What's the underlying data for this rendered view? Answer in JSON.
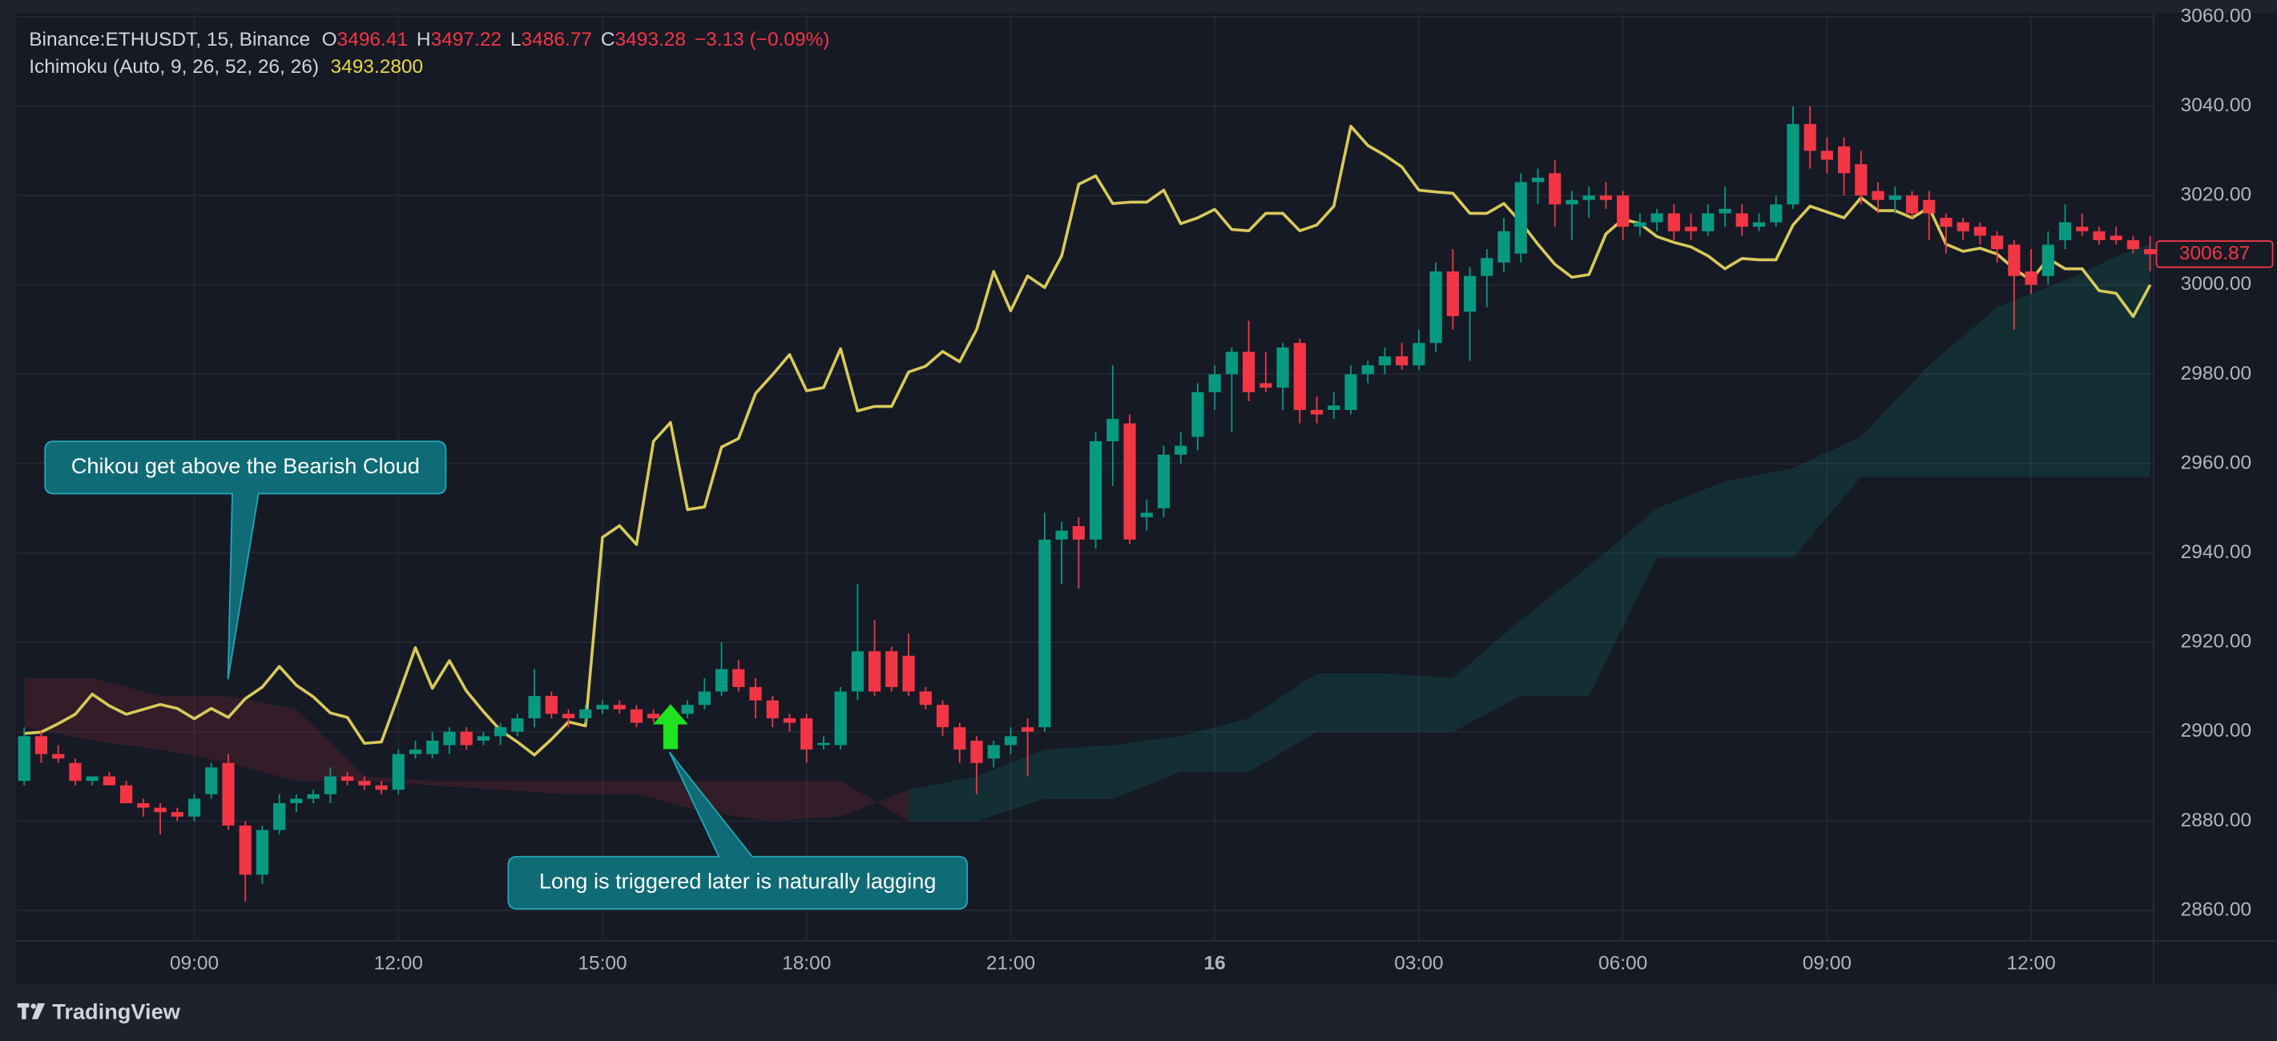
{
  "header": {
    "symbol": "Binance:ETHUSDT, 15, Binance",
    "open_label": "O",
    "open": 3496.41,
    "high_label": "H",
    "high": 3497.22,
    "low_label": "L",
    "low": 3486.77,
    "close_label": "C",
    "close": 3493.28,
    "change": "−3.13 (−0.09%)",
    "indicator_value": "3493.2800",
    "brand": "TradingView"
  },
  "chart_data": {
    "type": "candlestick",
    "up_color": "#089981",
    "down_color": "#f23645",
    "xlim": [
      6.4,
      37.8
    ],
    "ylim": [
      2853.2,
      3060.5
    ],
    "xticks": [
      {
        "value": 9,
        "label": "09:00"
      },
      {
        "value": 12,
        "label": "12:00"
      },
      {
        "value": 15,
        "label": "15:00"
      },
      {
        "value": 18,
        "label": "18:00"
      },
      {
        "value": 21,
        "label": "21:00"
      },
      {
        "value": 24,
        "label": "16"
      },
      {
        "value": 27,
        "label": "03:00"
      },
      {
        "value": 30,
        "label": "06:00"
      },
      {
        "value": 33,
        "label": "09:00"
      },
      {
        "value": 36,
        "label": "12:00"
      }
    ],
    "yticks": [
      {
        "value": 2860,
        "label": "2860.00"
      },
      {
        "value": 2880,
        "label": "2880.00"
      },
      {
        "value": 2900,
        "label": "2900.00"
      },
      {
        "value": 2920,
        "label": "2920.00"
      },
      {
        "value": 2940,
        "label": "2940.00"
      },
      {
        "value": 2960,
        "label": "2960.00"
      },
      {
        "value": 2980,
        "label": "2980.00"
      },
      {
        "value": 3000,
        "label": "3000.00"
      },
      {
        "value": 3020,
        "label": "3020.00"
      },
      {
        "value": 3040,
        "label": "3040.00"
      },
      {
        "value": 3060,
        "label": "3060.00"
      }
    ],
    "grid": true,
    "x": [
      6.5,
      6.75,
      7,
      7.25,
      7.5,
      7.75,
      8,
      8.25,
      8.5,
      8.75,
      9,
      9.25,
      9.5,
      9.75,
      10,
      10.25,
      10.5,
      10.75,
      11,
      11.25,
      11.5,
      11.75,
      12,
      12.25,
      12.5,
      12.75,
      13,
      13.25,
      13.5,
      13.75,
      14,
      14.25,
      14.5,
      14.75,
      15,
      15.25,
      15.5,
      15.75,
      16,
      16.25,
      16.5,
      16.75,
      17,
      17.25,
      17.5,
      17.75,
      18,
      18.25,
      18.5,
      18.75,
      19,
      19.25,
      19.5,
      19.75,
      20,
      20.25,
      20.5,
      20.75,
      21,
      21.25,
      21.5,
      21.75,
      22,
      22.25,
      22.5,
      22.75,
      23,
      23.25,
      23.5,
      23.75,
      24,
      24.25,
      24.5,
      24.75,
      25,
      25.25,
      25.5,
      25.75,
      26,
      26.25,
      26.5,
      26.75,
      27,
      27.25,
      27.5,
      27.75,
      28,
      28.25,
      28.5,
      28.75,
      29,
      29.25,
      29.5,
      29.75,
      30,
      30.25,
      30.5,
      30.75,
      31,
      31.25,
      31.5,
      31.75,
      32,
      32.25,
      32.5,
      32.75,
      33,
      33.25,
      33.5,
      33.75,
      34,
      34.25,
      34.5,
      34.75,
      35,
      35.25,
      35.5,
      35.75,
      36,
      36.25,
      36.5,
      36.75,
      37,
      37.25,
      37.5,
      37.75
    ],
    "ohlc": [
      [
        2889,
        2901,
        2888,
        2899
      ],
      [
        2899,
        2900,
        2893,
        2895
      ],
      [
        2895,
        2897,
        2893,
        2894
      ],
      [
        2893,
        2894,
        2888,
        2889
      ],
      [
        2889,
        2890,
        2888,
        2890
      ],
      [
        2890,
        2891,
        2888,
        2888
      ],
      [
        2888,
        2889,
        2884,
        2884
      ],
      [
        2884,
        2885,
        2881,
        2883
      ],
      [
        2883,
        2884,
        2877,
        2882
      ],
      [
        2882,
        2883,
        2880,
        2881
      ],
      [
        2881,
        2886,
        2880,
        2885
      ],
      [
        2886,
        2893,
        2885,
        2892
      ],
      [
        2893,
        2895,
        2878,
        2879
      ],
      [
        2879,
        2880,
        2862,
        2868
      ],
      [
        2868,
        2879,
        2866,
        2878
      ],
      [
        2878,
        2886,
        2877,
        2884
      ],
      [
        2884,
        2886,
        2882,
        2885
      ],
      [
        2885,
        2887,
        2884,
        2886
      ],
      [
        2886,
        2892,
        2884,
        2890
      ],
      [
        2890,
        2891,
        2888,
        2889
      ],
      [
        2889,
        2890,
        2887,
        2888
      ],
      [
        2888,
        2889,
        2886,
        2887
      ],
      [
        2887,
        2896,
        2886,
        2895
      ],
      [
        2895,
        2898,
        2894,
        2896
      ],
      [
        2895,
        2900,
        2894,
        2898
      ],
      [
        2897,
        2901,
        2895,
        2900
      ],
      [
        2900,
        2901,
        2896,
        2897
      ],
      [
        2898,
        2900,
        2897,
        2899
      ],
      [
        2899,
        2902,
        2897,
        2901
      ],
      [
        2900,
        2904,
        2899,
        2903
      ],
      [
        2903,
        2914,
        2901,
        2908
      ],
      [
        2908,
        2909,
        2903,
        2904
      ],
      [
        2904,
        2905,
        2901,
        2903
      ],
      [
        2903,
        2906,
        2902,
        2905
      ],
      [
        2905,
        2907,
        2904,
        2906
      ],
      [
        2906,
        2907,
        2904,
        2905
      ],
      [
        2905,
        2906,
        2901,
        2902
      ],
      [
        2904,
        2905,
        2902,
        2903
      ],
      [
        2903,
        2906,
        2900,
        2904
      ],
      [
        2904,
        2907,
        2903,
        2906
      ],
      [
        2906,
        2912,
        2905,
        2909
      ],
      [
        2909,
        2920,
        2908,
        2914
      ],
      [
        2914,
        2916,
        2909,
        2910
      ],
      [
        2910,
        2912,
        2903,
        2907
      ],
      [
        2907,
        2908,
        2901,
        2903
      ],
      [
        2903,
        2904,
        2900,
        2902
      ],
      [
        2903,
        2904,
        2893,
        2896
      ],
      [
        2897,
        2899,
        2896,
        2897.5
      ],
      [
        2897,
        2910,
        2896,
        2909
      ],
      [
        2909,
        2933,
        2907,
        2918
      ],
      [
        2918,
        2925,
        2908,
        2909
      ],
      [
        2918,
        2919,
        2909,
        2910
      ],
      [
        2917,
        2922,
        2908,
        2909
      ],
      [
        2909,
        2910,
        2905,
        2906
      ],
      [
        2906,
        2907,
        2899,
        2901
      ],
      [
        2901,
        2902,
        2893,
        2896
      ],
      [
        2898,
        2899,
        2886,
        2893
      ],
      [
        2894,
        2898,
        2892,
        2897
      ],
      [
        2897,
        2901,
        2895,
        2899
      ],
      [
        2901,
        2903,
        2890,
        2900
      ],
      [
        2901,
        2949,
        2900,
        2943
      ],
      [
        2943,
        2947,
        2933,
        2945
      ],
      [
        2946,
        2948,
        2932,
        2943
      ],
      [
        2943,
        2967,
        2941,
        2965
      ],
      [
        2965,
        2982,
        2955,
        2970
      ],
      [
        2969,
        2971,
        2942,
        2943
      ],
      [
        2948,
        2952,
        2945,
        2949
      ],
      [
        2950,
        2964,
        2948,
        2962
      ],
      [
        2962,
        2967,
        2960,
        2964
      ],
      [
        2966,
        2978,
        2963,
        2976
      ],
      [
        2976,
        2982,
        2972,
        2980
      ],
      [
        2980,
        2986,
        2967,
        2985
      ],
      [
        2985,
        2992,
        2974,
        2976
      ],
      [
        2978,
        2985,
        2976,
        2977
      ],
      [
        2977,
        2987,
        2972,
        2986
      ],
      [
        2987,
        2988,
        2969,
        2972
      ],
      [
        2972,
        2975,
        2969,
        2971
      ],
      [
        2972,
        2976,
        2970,
        2973
      ],
      [
        2972,
        2982,
        2971,
        2980
      ],
      [
        2980,
        2983,
        2978,
        2982
      ],
      [
        2982,
        2986,
        2980,
        2984
      ],
      [
        2984,
        2987,
        2981,
        2982
      ],
      [
        2982,
        2990,
        2981,
        2987
      ],
      [
        2987,
        3005,
        2985,
        3003
      ],
      [
        3003,
        3008,
        2990,
        2993
      ],
      [
        2994,
        3004,
        2983,
        3002
      ],
      [
        3002,
        3008,
        2995,
        3006
      ],
      [
        3005,
        3015,
        3003,
        3012
      ],
      [
        3007,
        3025,
        3005,
        3023
      ],
      [
        3023,
        3026,
        3018,
        3024
      ],
      [
        3025,
        3028,
        3013,
        3018
      ],
      [
        3018,
        3021,
        3010,
        3019
      ],
      [
        3019,
        3022,
        3015,
        3020
      ],
      [
        3020,
        3023,
        3017,
        3019
      ],
      [
        3020,
        3021,
        3010,
        3013
      ],
      [
        3013,
        3016,
        3011,
        3014
      ],
      [
        3014,
        3017,
        3012,
        3016
      ],
      [
        3016,
        3018,
        3010,
        3012
      ],
      [
        3013,
        3016,
        3010,
        3012
      ],
      [
        3012,
        3018,
        3011,
        3016
      ],
      [
        3016,
        3022,
        3013,
        3017
      ],
      [
        3016,
        3018,
        3011,
        3013
      ],
      [
        3013,
        3016,
        3012,
        3014
      ],
      [
        3014,
        3020,
        3013,
        3018
      ],
      [
        3018,
        3040,
        3017,
        3036
      ],
      [
        3036,
        3040,
        3026,
        3030
      ],
      [
        3030,
        3033,
        3025,
        3028
      ],
      [
        3031,
        3033,
        3020,
        3025
      ],
      [
        3027,
        3030,
        3018,
        3020
      ],
      [
        3021,
        3023,
        3016,
        3019
      ],
      [
        3019,
        3022,
        3016,
        3020
      ],
      [
        3020,
        3021,
        3015,
        3016
      ],
      [
        3019,
        3021,
        3010,
        3016
      ],
      [
        3015,
        3016,
        3007,
        3013
      ],
      [
        3014,
        3015,
        3010,
        3012
      ],
      [
        3013,
        3014,
        3009,
        3011
      ],
      [
        3011,
        3012,
        3005,
        3008
      ],
      [
        3009,
        3010,
        2990,
        3002
      ],
      [
        3003,
        3008,
        2998,
        3000
      ],
      [
        3002,
        3012,
        3000,
        3009
      ],
      [
        3010,
        3018,
        3008,
        3014
      ],
      [
        3013,
        3016,
        3011,
        3012
      ],
      [
        3012,
        3013,
        3009,
        3010
      ],
      [
        3011,
        3013,
        3009,
        3010
      ],
      [
        3010,
        3011,
        3007,
        3008
      ],
      [
        3008,
        3011,
        3003,
        3006.87
      ]
    ],
    "series": [
      {
        "name": "Ichimoku (Auto, 9, 26, 52, 26, 26)",
        "color": "#d8c95a",
        "values": [
          2899.6,
          2899.9,
          2901.8,
          2903.9,
          2908.4,
          2905.8,
          2903.9,
          2905.0,
          2906.1,
          2905.2,
          2902.9,
          2905.2,
          2903.2,
          2907.4,
          2910.0,
          2914.6,
          2910.4,
          2907.8,
          2904.2,
          2903.2,
          2897.4,
          2897.7,
          2908.1,
          2918.8,
          2909.7,
          2915.9,
          2909.1,
          2904.5,
          2900.3,
          2897.7,
          2894.8,
          2898.3,
          2902.2,
          2901.3,
          2943.5,
          2946.1,
          2941.9,
          2965.0,
          2969.2,
          2949.7,
          2950.3,
          2963.7,
          2965.6,
          2975.7,
          2979.9,
          2984.4,
          2976.3,
          2977.0,
          2985.7,
          2971.8,
          2972.8,
          2972.8,
          2980.5,
          2981.8,
          2985.1,
          2982.8,
          2990.0,
          3003.0,
          2994.2,
          3002.0,
          2999.4,
          3006.5,
          3022.5,
          3024.4,
          3018.2,
          3018.5,
          3018.5,
          3021.2,
          3013.7,
          3015.0,
          3016.9,
          3012.4,
          3012.1,
          3016.0,
          3016.0,
          3012.1,
          3013.4,
          3017.6,
          3035.5,
          3031.2,
          3029.0,
          3026.4,
          3021.2,
          3020.8,
          3020.5,
          3016.0,
          3016.0,
          3018.2,
          3014.0,
          3009.1,
          3004.6,
          3001.7,
          3002.3,
          3011.4,
          3014.7,
          3013.7,
          3010.8,
          3009.5,
          3008.5,
          3006.5,
          3003.6,
          3005.9,
          3005.6,
          3005.6,
          3013.4,
          3017.6,
          3016.3,
          3015.0,
          3019.5,
          3016.6,
          3016.6,
          3015.0,
          3017.3,
          3009.1,
          3007.5,
          3008.2,
          3006.9,
          3003.6,
          3001.0,
          3005.9,
          3003.6,
          3003.6,
          2998.7,
          2998.1,
          2992.9,
          3000.0
        ]
      }
    ],
    "cloud": {
      "bull_color": "#089981",
      "bear_color": "#f23645",
      "x": [
        6.5,
        7.5,
        8.5,
        9.5,
        10.5,
        11.5,
        12.5,
        13.5,
        14.5,
        15.5,
        16.5,
        17.5,
        18.5,
        19.5,
        20.5,
        21.5,
        22.5,
        23.5,
        24.5,
        25.5,
        26.5,
        27.5,
        28.5,
        29.5,
        30.5,
        31.5,
        32.5,
        33.5,
        34.5,
        35.5,
        36.5,
        37.5,
        37.75
      ],
      "span_a": [
        2901,
        2898,
        2896,
        2893,
        2889,
        2889,
        2888,
        2887,
        2886,
        2886,
        2882,
        2880,
        2881,
        2887,
        2890,
        2896,
        2897,
        2899,
        2903,
        2913,
        2913,
        2912,
        2925,
        2937,
        2950,
        2956,
        2959,
        2966,
        2982,
        2995,
        3001,
        3008,
        3009
      ],
      "span_b": [
        2912,
        2912,
        2908,
        2908,
        2905,
        2890,
        2889,
        2889,
        2889,
        2889,
        2889,
        2889,
        2889,
        2880,
        2880,
        2885,
        2885,
        2891,
        2891,
        2900,
        2900,
        2900,
        2908,
        2908,
        2939,
        2939,
        2939,
        2957,
        2957,
        2957,
        2957,
        2957,
        2957
      ]
    },
    "signal_x": 16,
    "annotations": [
      {
        "text": "Chikou get above the Bearish Cloud"
      },
      {
        "text": "Long is triggered later is naturally lagging"
      }
    ]
  }
}
